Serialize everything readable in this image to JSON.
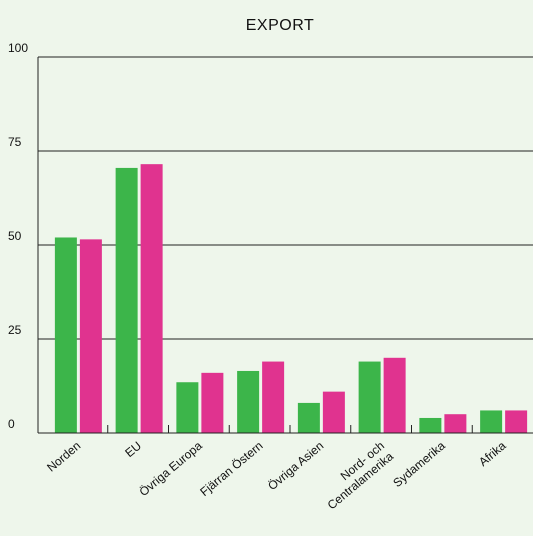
{
  "chart_data": {
    "type": "bar",
    "title": "EXPORT",
    "xlabel": "",
    "ylabel": "",
    "ylim": [
      0,
      100
    ],
    "yticks": [
      0,
      25,
      50,
      75,
      100
    ],
    "grid": true,
    "legend": "none",
    "categories": [
      "Norden",
      "EU",
      "Övriga Europa",
      "Fjärran Östern",
      "Övriga Asien",
      "Nord- och Centralamerika",
      "Sydamerika",
      "Afrika"
    ],
    "series": [
      {
        "color": "#3cb54a",
        "values": [
          52,
          70.5,
          13.5,
          16.5,
          8,
          19,
          4,
          6
        ]
      },
      {
        "color": "#e0338f",
        "values": [
          51.5,
          71.5,
          16,
          19,
          11,
          20,
          5,
          6
        ]
      }
    ]
  }
}
